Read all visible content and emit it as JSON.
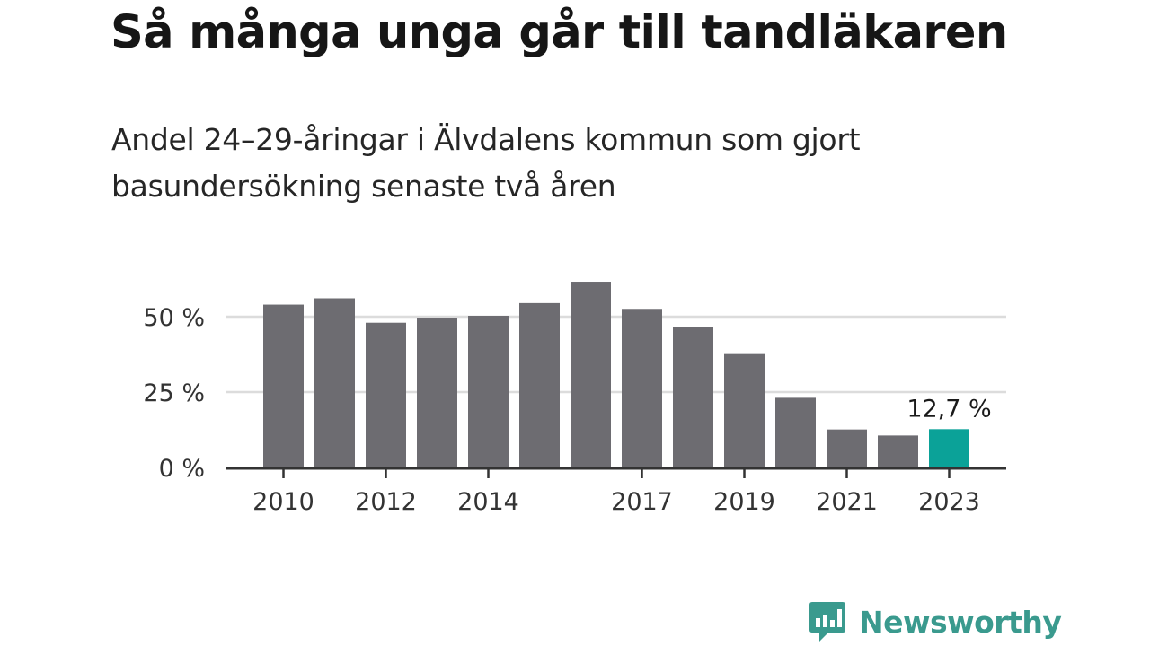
{
  "title": "Så många unga går till tandläkaren",
  "subtitle": "Andel 24–29-åringar i Älvdalens kommun som gjort basundersökning senaste två åren",
  "brand": {
    "name": "Newsworthy",
    "logo_icon": "bar-chart-speech-bubble-icon"
  },
  "colors": {
    "bar": "#6d6c71",
    "highlight": "#0ba298",
    "gridline": "#dcdcdc",
    "axis": "#333333",
    "brand": "#3a9a8e"
  },
  "chart_data": {
    "type": "bar",
    "title": "",
    "xlabel": "",
    "ylabel": "",
    "categories": [
      "2010",
      "2011",
      "2012",
      "2013",
      "2014",
      "2015",
      "2016",
      "2017",
      "2018",
      "2019",
      "2020",
      "2021",
      "2022",
      "2023"
    ],
    "x_tick_labels": [
      "2010",
      "",
      "2012",
      "",
      "2014",
      "",
      "",
      "2017",
      "",
      "2019",
      "",
      "2021",
      "",
      "2023"
    ],
    "values": [
      54,
      56.1,
      48,
      49.7,
      50.3,
      54.5,
      61.6,
      52.6,
      46.6,
      37.9,
      23.1,
      12.6,
      10.6,
      12.7
    ],
    "ylim": [
      0,
      65
    ],
    "y_ticks": [
      0,
      25,
      50
    ],
    "y_tick_labels": [
      "0 %",
      "25 %",
      "50 %"
    ],
    "grid": true,
    "highlight_index": 13,
    "highlight_label": "12,7 %"
  }
}
